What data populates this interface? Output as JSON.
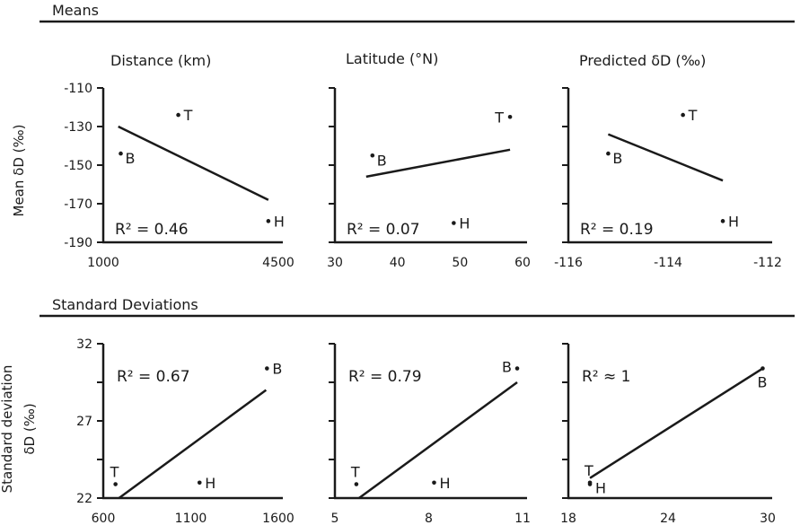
{
  "sections": {
    "means_title": "Means",
    "sd_title": "Standard Deviations"
  },
  "column_titles": [
    "Distance (km)",
    "Latitude (°N)",
    "Predicted δD (‰)"
  ],
  "row_ylabels": {
    "means": "Mean δD (‰)",
    "sd_line1": "Standard deviation",
    "sd_line2": "δD (‰)"
  },
  "chart_data": [
    {
      "type": "scatter",
      "row": "means",
      "col": 0,
      "xlim": [
        1000,
        4500
      ],
      "xticks": [
        "1000",
        "4500"
      ],
      "ylim": [
        -190,
        -110
      ],
      "yticks": [
        "-110",
        "-130",
        "-150",
        "-170",
        "-190"
      ],
      "points": [
        {
          "label": "T",
          "x": 2500,
          "y": -124
        },
        {
          "label": "B",
          "x": 1350,
          "y": -144
        },
        {
          "label": "H",
          "x": 4300,
          "y": -179
        }
      ],
      "fit": {
        "x0": 1300,
        "y0": -130,
        "x1": 4300,
        "y1": -168
      },
      "r2_text": "R² = 0.46"
    },
    {
      "type": "scatter",
      "row": "means",
      "col": 1,
      "xlim": [
        30,
        60
      ],
      "xticks": [
        "30",
        "40",
        "50",
        "60"
      ],
      "ylim": [
        -190,
        -110
      ],
      "yticks": [],
      "points": [
        {
          "label": "T",
          "x": 58,
          "y": -125
        },
        {
          "label": "B",
          "x": 36,
          "y": -145
        },
        {
          "label": "H",
          "x": 49,
          "y": -180
        }
      ],
      "fit": {
        "x0": 35,
        "y0": -156,
        "x1": 58,
        "y1": -142
      },
      "r2_text": "R² = 0.07"
    },
    {
      "type": "scatter",
      "row": "means",
      "col": 2,
      "xlim": [
        -116,
        -112
      ],
      "xticks": [
        "-116",
        "-114",
        "-112"
      ],
      "ylim": [
        -190,
        -110
      ],
      "yticks": [],
      "points": [
        {
          "label": "T",
          "x": -113.7,
          "y": -124
        },
        {
          "label": "B",
          "x": -115.2,
          "y": -144
        },
        {
          "label": "H",
          "x": -112.9,
          "y": -179
        }
      ],
      "fit": {
        "x0": -115.2,
        "y0": -134,
        "x1": -112.9,
        "y1": -158
      },
      "r2_text": "R² = 0.19"
    },
    {
      "type": "scatter",
      "row": "sd",
      "col": 0,
      "xlim": [
        600,
        1600
      ],
      "xticks": [
        "600",
        "1100",
        "1600"
      ],
      "ylim": [
        22,
        32
      ],
      "yticks": [
        "32",
        "27",
        "22"
      ],
      "points": [
        {
          "label": "B",
          "x": 1535,
          "y": 30.4
        },
        {
          "label": "T",
          "x": 670,
          "y": 22.9
        },
        {
          "label": "H",
          "x": 1150,
          "y": 23.0
        }
      ],
      "fit": {
        "x0": 690,
        "y0": 22,
        "x1": 1530,
        "y1": 29
      },
      "r2_text": "R² = 0.67"
    },
    {
      "type": "scatter",
      "row": "sd",
      "col": 1,
      "xlim": [
        5,
        12
      ],
      "xticks": [
        "5",
        "8",
        "11"
      ],
      "ylim": [
        22,
        32
      ],
      "yticks": [],
      "points": [
        {
          "label": "B",
          "x": 11.8,
          "y": 30.4
        },
        {
          "label": "T",
          "x": 5.8,
          "y": 22.9
        },
        {
          "label": "H",
          "x": 8.7,
          "y": 23.0
        }
      ],
      "fit": {
        "x0": 5.9,
        "y0": 22,
        "x1": 11.8,
        "y1": 29.5
      },
      "r2_text": "R² = 0.79"
    },
    {
      "type": "scatter",
      "row": "sd",
      "col": 2,
      "xlim": [
        18,
        30
      ],
      "xticks": [
        "18",
        "24",
        "30"
      ],
      "ylim": [
        22,
        32
      ],
      "yticks": [],
      "points": [
        {
          "label": "B",
          "x": 29.7,
          "y": 30.4
        },
        {
          "label": "T",
          "x": 19.3,
          "y": 23.0
        },
        {
          "label": "H",
          "x": 19.3,
          "y": 22.9
        }
      ],
      "fit": {
        "x0": 19.3,
        "y0": 23.3,
        "x1": 29.7,
        "y1": 30.4
      },
      "r2_text": "R² ≈ 1"
    }
  ]
}
